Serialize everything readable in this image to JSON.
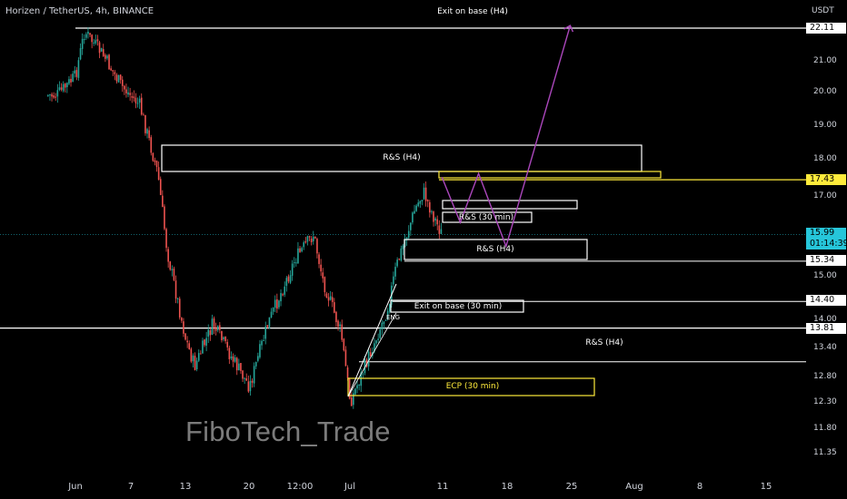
{
  "header": {
    "symbol_title": "Horizen / TetherUS, 4h, BINANCE",
    "axis_unit": "USDT"
  },
  "y_ticks": [
    "21.00",
    "20.00",
    "19.00",
    "18.00",
    "17.00",
    "15.00",
    "14.00",
    "13.40",
    "12.80",
    "12.30",
    "11.80",
    "11.35"
  ],
  "x_ticks": [
    "Jun",
    "7",
    "13",
    "20",
    "12:00",
    "Jul",
    "11",
    "18",
    "25",
    "Aug",
    "8",
    "15"
  ],
  "price_tags": {
    "exit_top": "22.11",
    "yellow_level": "17.43",
    "current_price": "15.99",
    "countdown": "01:14:39",
    "level_1534": "15.34",
    "level_1440": "14.40",
    "level_1381": "13.81"
  },
  "annotations": {
    "exit_base_h4": "Exit on base (H4)",
    "rbs_h4_upper": "R&S (H4)",
    "rbs_30min": "R&S (30 min)",
    "rbs_h4_mid": "R&S (H4)",
    "exit_base_30": "Exit on base (30 min)",
    "eng": "ENG",
    "rbs_h4_lower": "R&S (H4)",
    "ecp_30": "ECP (30 min)"
  },
  "watermark": "FiboTech_Trade",
  "colors": {
    "background": "#000000",
    "up_candle": "#26a69a",
    "down_candle": "#ef5350",
    "zone_white": "#ffffff",
    "zone_yellow": "#ffeb3b",
    "projection": "#ab47bc",
    "current_price": "#26c6da"
  },
  "chart_data": {
    "type": "candlestick",
    "title": "Horizen / TetherUS, 4h, BINANCE",
    "ylabel": "USDT",
    "y_scale": "log",
    "ylim": [
      11.1,
      23.0
    ],
    "x_tick_labels": [
      "Jun",
      "7",
      "13",
      "20",
      "12:00",
      "Jul",
      "11",
      "18",
      "25",
      "Aug",
      "8",
      "15"
    ],
    "close_path": [
      {
        "date": "2023-05-30",
        "price": 19.9
      },
      {
        "date": "2023-06-01",
        "price": 20.5
      },
      {
        "date": "2023-06-02",
        "price": 22.0
      },
      {
        "date": "2023-06-04",
        "price": 21.2
      },
      {
        "date": "2023-06-06",
        "price": 20.2
      },
      {
        "date": "2023-06-08",
        "price": 19.6
      },
      {
        "date": "2023-06-10",
        "price": 17.6
      },
      {
        "date": "2023-06-11",
        "price": 15.6
      },
      {
        "date": "2023-06-13",
        "price": 13.6
      },
      {
        "date": "2023-06-14",
        "price": 13.0
      },
      {
        "date": "2023-06-16",
        "price": 13.9
      },
      {
        "date": "2023-06-18",
        "price": 13.2
      },
      {
        "date": "2023-06-20",
        "price": 12.6
      },
      {
        "date": "2023-06-22",
        "price": 13.9
      },
      {
        "date": "2023-06-25",
        "price": 15.4
      },
      {
        "date": "2023-06-27",
        "price": 16.0
      },
      {
        "date": "2023-06-28",
        "price": 14.9
      },
      {
        "date": "2023-06-30",
        "price": 13.7
      },
      {
        "date": "2023-07-01",
        "price": 12.3
      },
      {
        "date": "2023-07-03",
        "price": 13.2
      },
      {
        "date": "2023-07-05",
        "price": 14.2
      },
      {
        "date": "2023-07-06",
        "price": 15.2
      },
      {
        "date": "2023-07-08",
        "price": 16.6
      },
      {
        "date": "2023-07-09",
        "price": 17.1
      },
      {
        "date": "2023-07-10",
        "price": 16.5
      },
      {
        "date": "2023-07-11",
        "price": 15.99
      }
    ],
    "current_price": 15.99,
    "levels": [
      {
        "price": 22.11,
        "label": "Exit on base (H4)"
      },
      {
        "price": 17.43
      },
      {
        "price": 15.34
      },
      {
        "price": 14.4
      },
      {
        "price": 13.81
      },
      {
        "price": 13.1,
        "label": "R&S (H4)"
      }
    ],
    "zones": [
      {
        "label": "R&S (H4)",
        "from": "2023-06-09",
        "to": "2023-07-28",
        "low": 17.6,
        "high": 18.4
      },
      {
        "label": "R&S (30 min)",
        "from": "2023-07-11",
        "to": "2023-07-22",
        "low": 16.0,
        "high": 16.3
      },
      {
        "label": "R&S (H4)",
        "from": "2023-07-09",
        "to": "2023-07-26",
        "low": 15.35,
        "high": 15.95
      },
      {
        "label": "Exit on base (30 min)",
        "from": "2023-07-06",
        "to": "2023-07-20",
        "low": 14.45,
        "high": 14.65
      },
      {
        "label": "ECP (30 min)",
        "from": "2023-07-01",
        "to": "2023-07-27",
        "low": 12.35,
        "high": 12.65
      }
    ],
    "projection_path": [
      {
        "date": "2023-07-11",
        "price": 17.5
      },
      {
        "date": "2023-07-13",
        "price": 16.3
      },
      {
        "date": "2023-07-15",
        "price": 17.6
      },
      {
        "date": "2023-07-18",
        "price": 15.7
      },
      {
        "date": "2023-07-25",
        "price": 22.2
      }
    ]
  }
}
